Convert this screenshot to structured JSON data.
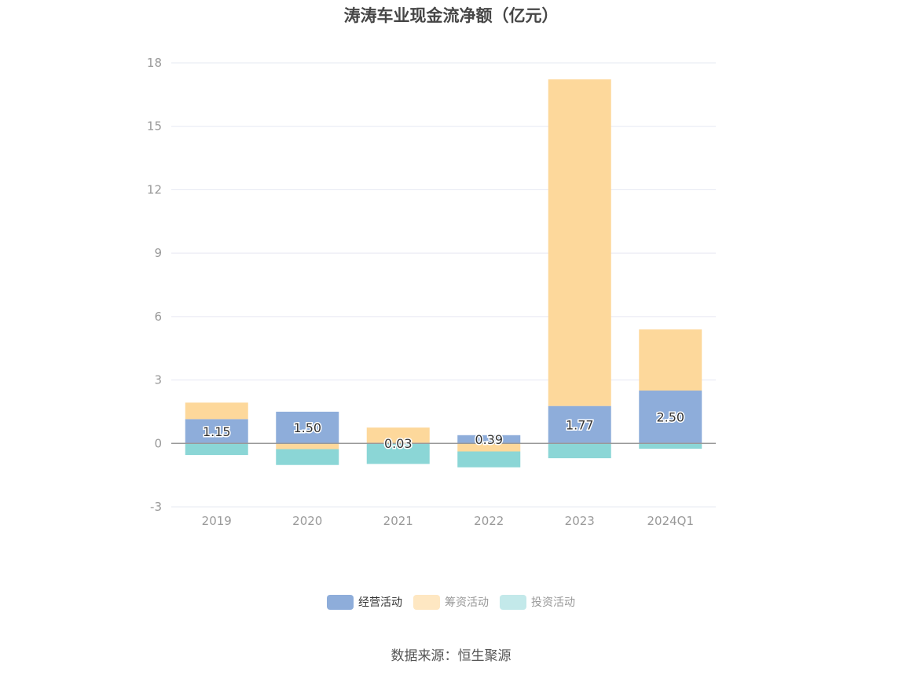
{
  "title": "涛涛车业现金流净额（亿元）",
  "source": "数据来源：恒生聚源",
  "colors": {
    "operating": "#8eadda",
    "financing": "#fdd89b",
    "investing": "#8bd6d6",
    "grid": "#e6e8f2",
    "zero_line": "#999999",
    "tick_text": "#999999"
  },
  "legend": [
    {
      "label": "经营活动",
      "swatch": "#8eadda",
      "active": true
    },
    {
      "label": "筹资活动",
      "swatch": "#fee7c2",
      "active": false
    },
    {
      "label": "投资活动",
      "swatch": "#c3e9ea",
      "active": false
    }
  ],
  "chart_data": {
    "type": "bar",
    "stacked": true,
    "title": "涛涛车业现金流净额（亿元）",
    "categories": [
      "2019",
      "2020",
      "2021",
      "2022",
      "2023",
      "2024Q1"
    ],
    "ylim": [
      -3,
      18
    ],
    "yticks": [
      -3,
      0,
      3,
      6,
      9,
      12,
      15,
      18
    ],
    "grid": true,
    "legend_position": "bottom",
    "series": [
      {
        "name": "经营活动",
        "values": [
          1.15,
          1.5,
          0.03,
          0.39,
          1.77,
          2.5
        ],
        "labels": [
          "1.15",
          "1.50",
          "0.03",
          "0.39",
          "1.77",
          "2.50"
        ]
      },
      {
        "name": "筹资活动",
        "values": [
          0.78,
          -0.27,
          0.72,
          -0.38,
          15.45,
          2.89
        ]
      },
      {
        "name": "投资活动",
        "values": [
          -0.55,
          -0.75,
          -0.97,
          -0.75,
          -0.7,
          -0.25
        ]
      }
    ]
  }
}
